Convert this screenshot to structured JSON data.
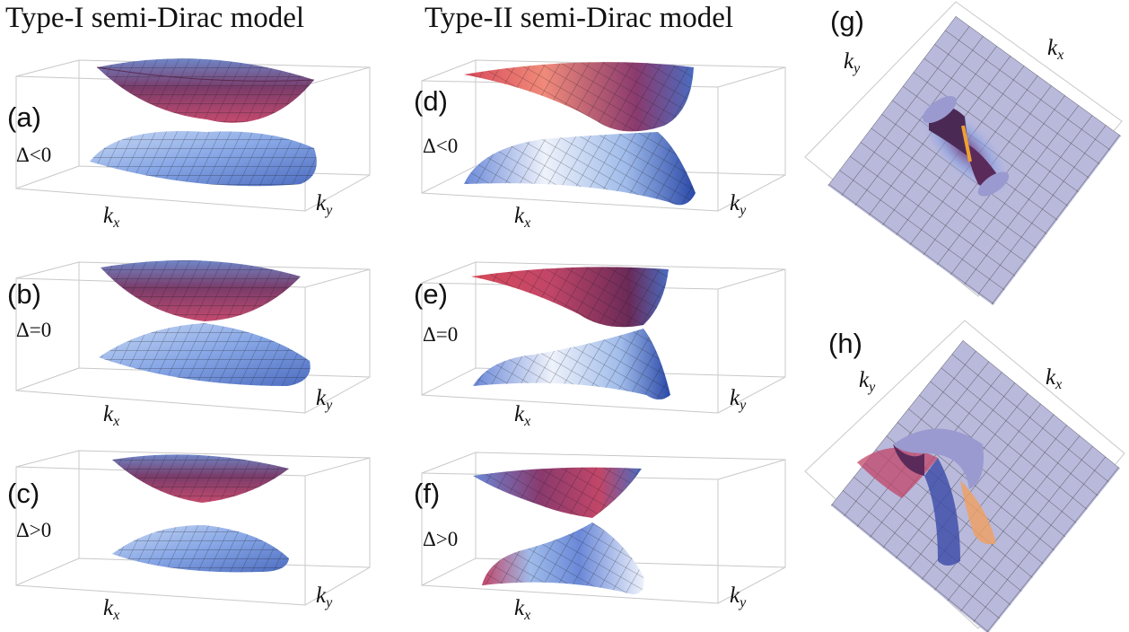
{
  "titles": {
    "type1": "Type-I semi-Dirac model",
    "type2": "Type-II semi-Dirac model"
  },
  "axis_labels": {
    "kx_main": "k",
    "kx_sub": "x",
    "ky_main": "k",
    "ky_sub": "y"
  },
  "panels": [
    {
      "id": "a",
      "label": "(a)",
      "delta": "Δ<0",
      "model": "type1",
      "gap": "negative"
    },
    {
      "id": "b",
      "label": "(b)",
      "delta": "Δ=0",
      "model": "type1",
      "gap": "zero"
    },
    {
      "id": "c",
      "label": "(c)",
      "delta": "Δ>0",
      "model": "type1",
      "gap": "positive"
    },
    {
      "id": "d",
      "label": "(d)",
      "delta": "Δ<0",
      "model": "type2",
      "gap": "negative"
    },
    {
      "id": "e",
      "label": "(e)",
      "delta": "Δ=0",
      "model": "type2",
      "gap": "zero"
    },
    {
      "id": "f",
      "label": "(f)",
      "delta": "Δ>0",
      "model": "type2",
      "gap": "positive"
    },
    {
      "id": "g",
      "label": "(g)"
    },
    {
      "id": "h",
      "label": "(h)"
    }
  ],
  "colors": {
    "upper_band": "#8a3a6e",
    "upper_band_light": "#e0637a",
    "lower_band": "#7d9ce0",
    "lower_band_light": "#d6e4f7",
    "plane": "#b9b9dc",
    "box_line": "#c8c8c8"
  }
}
